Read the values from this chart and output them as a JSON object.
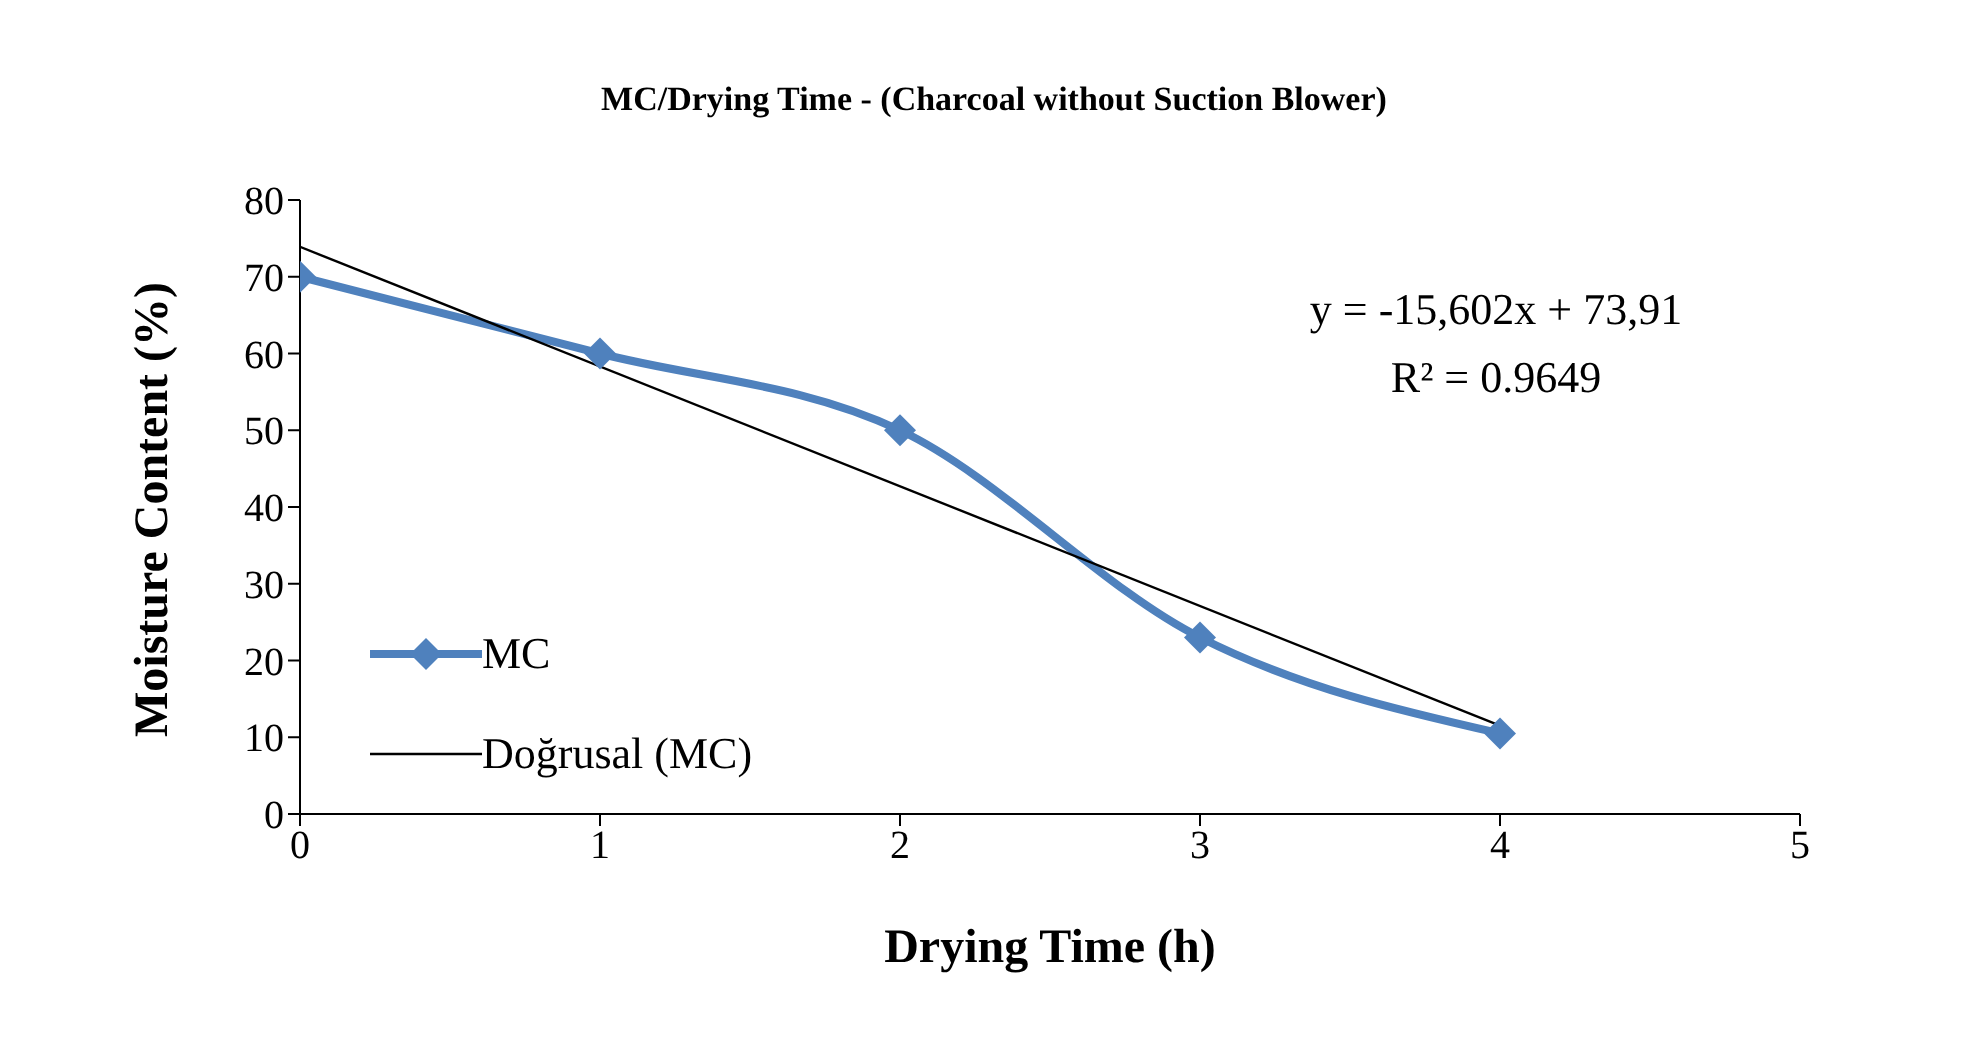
{
  "chart_data": {
    "type": "line",
    "title": "MC/Drying Time - (Charcoal without Suction Blower)",
    "xlabel": "Drying Time (h)",
    "ylabel": "Moisture Content (%)",
    "x": [
      0,
      1,
      2,
      3,
      4
    ],
    "series": [
      {
        "name": "MC",
        "color": "#4f81bd",
        "values": [
          70,
          60,
          50,
          23,
          10.5
        ],
        "marker": "diamond"
      },
      {
        "name": "Doğrusal (MC)",
        "color": "#000000",
        "type": "line",
        "x": [
          0,
          4
        ],
        "values": [
          73.9,
          11.5
        ],
        "marker": "none"
      }
    ],
    "xlim": [
      0,
      5
    ],
    "xticks": [
      0,
      1,
      2,
      3,
      4,
      5
    ],
    "ylim": [
      0,
      80
    ],
    "yticks": [
      0,
      10,
      20,
      30,
      40,
      50,
      60,
      70,
      80
    ],
    "grid": false,
    "legend": "bottom left",
    "line_style": "solid",
    "annotations": [
      "y = -15,602x + 73,91",
      "R² = 0.9649"
    ]
  }
}
